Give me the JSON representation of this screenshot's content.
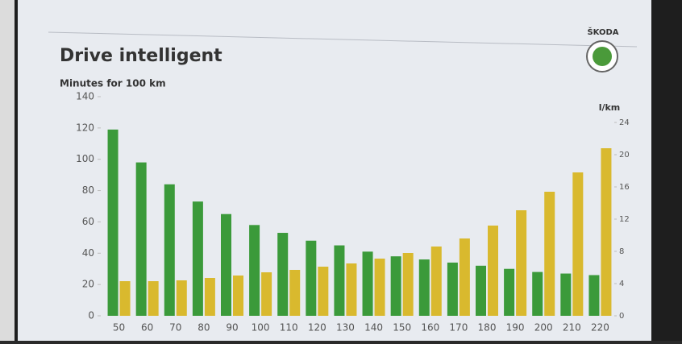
{
  "brand": "ŠKODA",
  "chart_data": {
    "type": "bar",
    "title": "Drive intelligent",
    "y_label": "Minutes for 100 km",
    "y2_label": "l/km",
    "categories": [
      "50",
      "60",
      "70",
      "80",
      "90",
      "100",
      "110",
      "120",
      "130",
      "140",
      "150",
      "160",
      "170",
      "180",
      "190",
      "200",
      "210",
      "220"
    ],
    "series": [
      {
        "color": "#3b9a3a",
        "values": [
          119,
          98,
          84,
          73,
          65,
          58,
          53,
          48,
          45,
          41,
          38,
          36,
          34,
          32,
          30,
          28,
          27,
          26
        ]
      },
      {
        "color": "#d9b92e",
        "axis": "y2",
        "values": [
          4.3,
          4.3,
          4.4,
          4.7,
          5,
          5.4,
          5.7,
          6.1,
          6.5,
          7.1,
          7.8,
          8.6,
          9.6,
          11.2,
          13.1,
          15.4,
          17.8,
          20.8
        ]
      }
    ],
    "ylim": [
      0,
      140
    ],
    "yticks": [
      0,
      20,
      40,
      60,
      80,
      100,
      120,
      140
    ],
    "y2lim": [
      0,
      24
    ],
    "y2ticks": [
      0,
      4,
      8,
      12,
      16,
      20,
      24
    ]
  }
}
